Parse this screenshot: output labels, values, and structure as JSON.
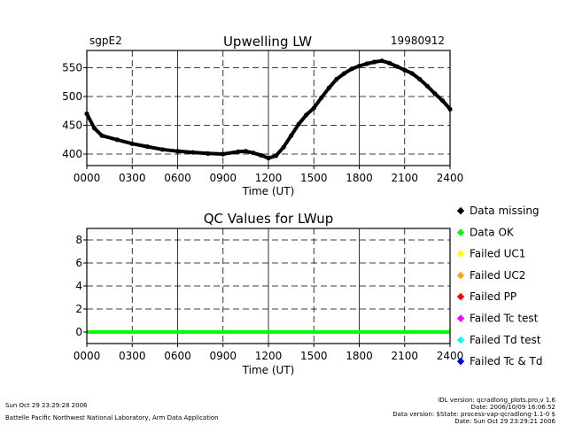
{
  "chart_data": [
    {
      "type": "scatter",
      "site": "sgpE2",
      "title": "Upwelling LW",
      "date": "19980912",
      "xlabel": "Time (UT)",
      "ylabel": "",
      "xlim": [
        0,
        2400
      ],
      "ylim": [
        380,
        580
      ],
      "x_ticks": [
        "0000",
        "0300",
        "0600",
        "0900",
        "1200",
        "1500",
        "1800",
        "2100",
        "2400"
      ],
      "y_ticks": [
        "400",
        "450",
        "500",
        "550"
      ],
      "y_tick_values": [
        400,
        450,
        500,
        550
      ],
      "grid": true,
      "series": [
        {
          "x": [
            0,
            50,
            100,
            200,
            300,
            400,
            500,
            600,
            700,
            800,
            900,
            1000,
            1050,
            1100,
            1150,
            1200,
            1250,
            1300,
            1350,
            1400,
            1450,
            1500,
            1550,
            1600,
            1650,
            1700,
            1750,
            1800,
            1850,
            1900,
            1950,
            2000,
            2050,
            2100,
            2150,
            2200,
            2250,
            2300,
            2350,
            2400
          ],
          "y": [
            470,
            445,
            432,
            425,
            418,
            413,
            408,
            405,
            403,
            401,
            400,
            404,
            405,
            402,
            398,
            393,
            397,
            412,
            432,
            452,
            468,
            480,
            498,
            515,
            530,
            540,
            548,
            553,
            557,
            560,
            562,
            558,
            552,
            546,
            540,
            530,
            518,
            505,
            493,
            478
          ]
        }
      ]
    },
    {
      "type": "scatter",
      "title": "QC Values for LWup",
      "xlabel": "Time (UT)",
      "ylabel": "",
      "xlim": [
        0,
        2400
      ],
      "ylim": [
        -1,
        9
      ],
      "x_ticks": [
        "0000",
        "0300",
        "0600",
        "0900",
        "1200",
        "1500",
        "1800",
        "2100",
        "2400"
      ],
      "y_ticks": [
        "0",
        "2",
        "4",
        "6",
        "8"
      ],
      "y_tick_values": [
        0,
        2,
        4,
        6,
        8
      ],
      "grid": true,
      "legend_position": "right",
      "legend": [
        {
          "label": "Data missing",
          "color": "#000000"
        },
        {
          "label": "Data OK",
          "color": "#00ff00"
        },
        {
          "label": "Failed UC1",
          "color": "#ffff00"
        },
        {
          "label": "Failed UC2",
          "color": "#ffa500"
        },
        {
          "label": "Failed PP",
          "color": "#ff0000"
        },
        {
          "label": "Failed Tc test",
          "color": "#ff00ff"
        },
        {
          "label": "Failed Td test",
          "color": "#00ffff"
        },
        {
          "label": "Failed Tc & Td",
          "color": "#0000ff"
        }
      ],
      "series": [
        {
          "x": [
            0,
            2400
          ],
          "y": [
            0,
            0
          ],
          "color": "#00ff00"
        }
      ]
    }
  ],
  "footer": {
    "left_date": "Sun Oct 29 23:29:28 2006",
    "left_org": "Battelle Pacific Northwest National Laboratory, Arm Data Application",
    "right_lines": [
      "IDL version: qcradlong_plots.pro,v 1.6",
      "Date: 2006/10/09 16:06:52",
      "Data version: $State: process-vap-qcradlong-1.1-0 $",
      "Date: Sun Oct 29 23:29:21 2006"
    ]
  }
}
